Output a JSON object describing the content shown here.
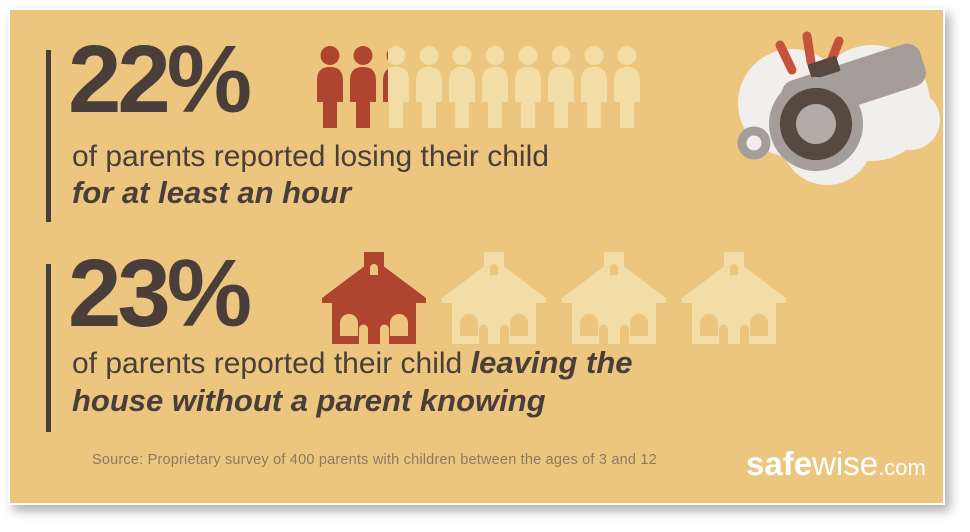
{
  "colors": {
    "card_background": "#ecc67e",
    "dark_text": "#4a3e3a",
    "red": "#b0452f",
    "cream": "#f2dda6",
    "source_text": "#8d7a5c",
    "white": "#ffffff",
    "whistle_gray": "#a59d99",
    "whistle_dark": "#57493f",
    "whistle_blob": "#f1efeb",
    "whistle_inner": "#b3aaa6",
    "whistle_dashes": "#c5523b"
  },
  "stat1": {
    "value": "22%",
    "line1": "of parents reported losing their child",
    "line2": "for at least an hour",
    "pictograph": {
      "icon": "person",
      "total": 10,
      "filled": 2,
      "partial": 0.2
    }
  },
  "stat2": {
    "value": "23%",
    "line1_regular": "of parents reported their child ",
    "line1_bold": "leaving the",
    "line2_bold": "house without a parent knowing",
    "pictograph": {
      "icon": "house",
      "total": 4,
      "filled": 1,
      "partial": 0
    }
  },
  "footer": {
    "source": "Source: Proprietary survey of 400 parents with children between the ages of 3 and 12",
    "logo": {
      "bold": "safe",
      "regular": "wise",
      "suffix": ".com"
    }
  },
  "chart_data": {
    "type": "pictograph",
    "items": [
      {
        "label": "of parents reported losing their child for at least an hour",
        "value_pct": 22,
        "icon": "person",
        "icons_total": 10,
        "icons_highlighted": 2.2
      },
      {
        "label": "of parents reported their child leaving the house without a parent knowing",
        "value_pct": 23,
        "icon": "house",
        "icons_total": 4,
        "icons_highlighted": 1
      }
    ],
    "source": "Source: Proprietary survey of 400 parents with children between the ages of 3 and 12",
    "brand": "safewise.com"
  }
}
